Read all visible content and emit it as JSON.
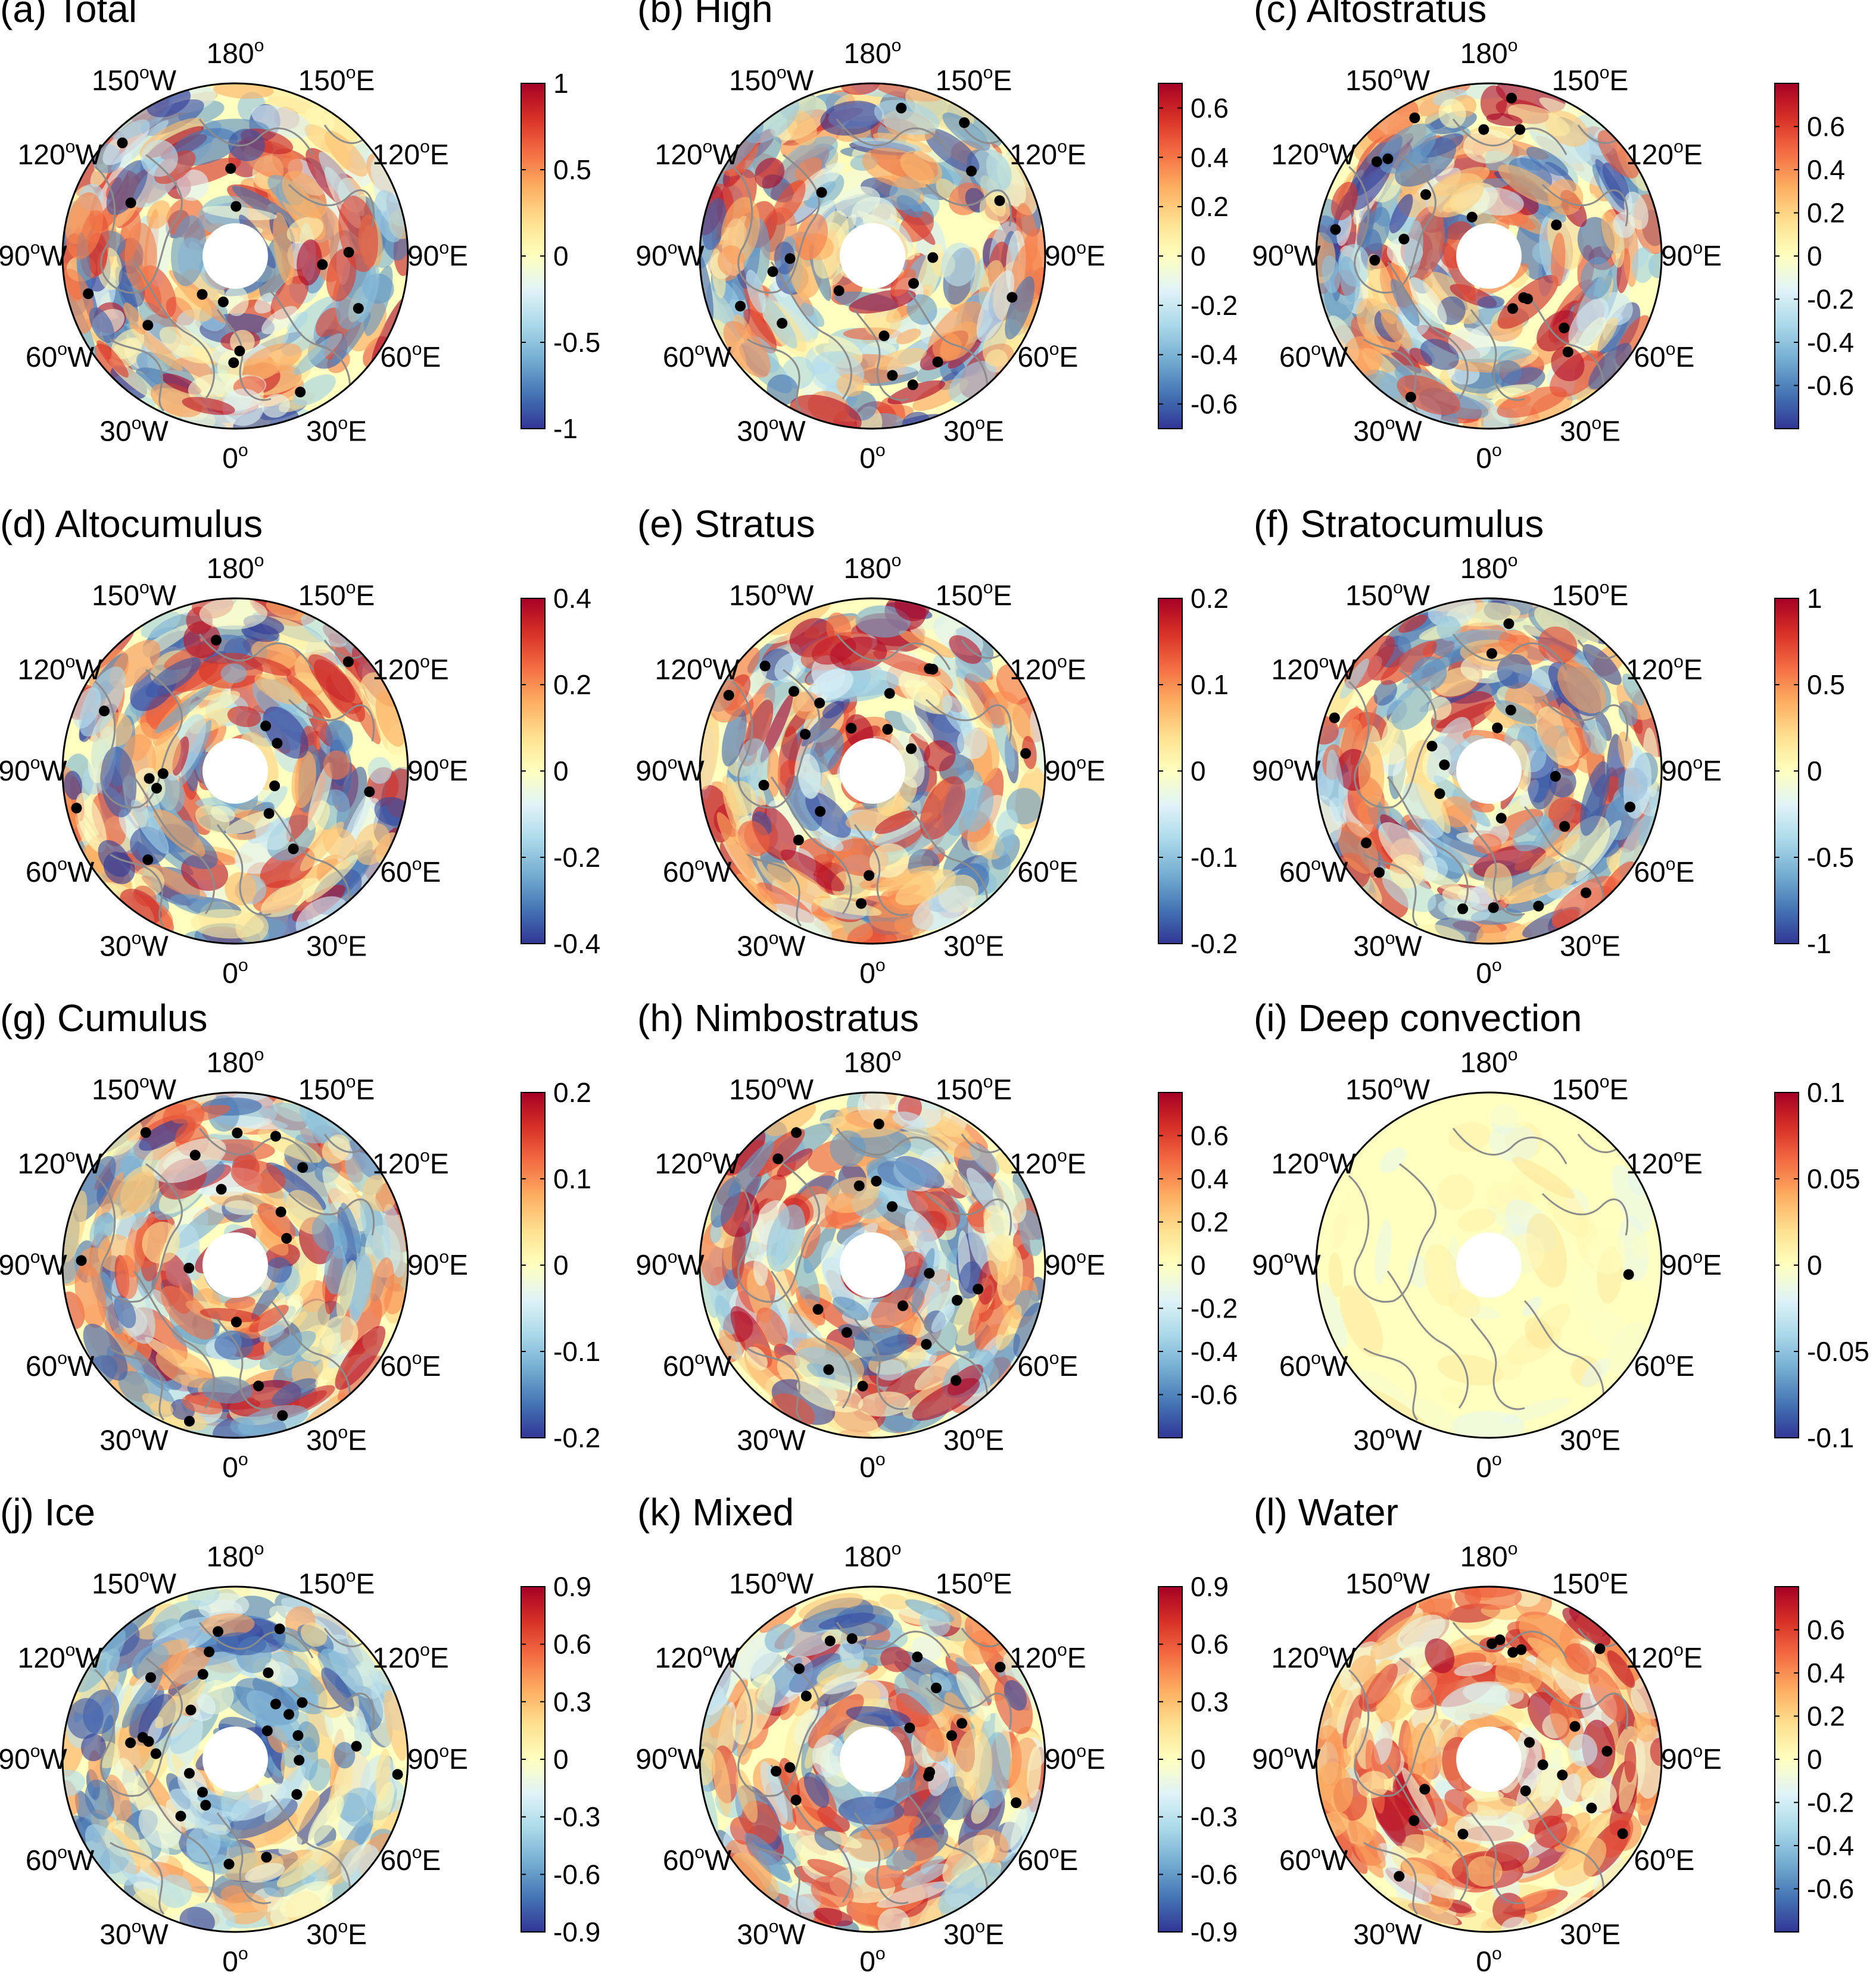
{
  "chart_data": [
    {
      "type": "heatmap",
      "projection": "north polar stereographic",
      "title": "(a) Total",
      "colorbar_ticks": [
        1,
        0.5,
        0,
        -0.5,
        -1
      ],
      "clim": [
        -1,
        1
      ],
      "stippling": "black dots",
      "seed": 11
    },
    {
      "type": "heatmap",
      "projection": "north polar stereographic",
      "title": "(b) High",
      "colorbar_ticks": [
        0.6,
        0.4,
        0.2,
        0,
        -0.2,
        -0.4,
        -0.6
      ],
      "clim": [
        -0.7,
        0.7
      ],
      "stippling": "black dots",
      "seed": 23
    },
    {
      "type": "heatmap",
      "projection": "north polar stereographic",
      "title": "(c) Altostratus",
      "colorbar_ticks": [
        0.6,
        0.4,
        0.2,
        0,
        -0.2,
        -0.4,
        -0.6
      ],
      "clim": [
        -0.8,
        0.8
      ],
      "stippling": "black dots",
      "seed": 37
    },
    {
      "type": "heatmap",
      "projection": "north polar stereographic",
      "title": "(d) Altocumulus",
      "colorbar_ticks": [
        0.4,
        0.2,
        0,
        -0.2,
        -0.4
      ],
      "clim": [
        -0.4,
        0.4
      ],
      "stippling": "black dots",
      "seed": 41
    },
    {
      "type": "heatmap",
      "projection": "north polar stereographic",
      "title": "(e) Stratus",
      "colorbar_ticks": [
        0.2,
        0.1,
        0,
        -0.1,
        -0.2
      ],
      "clim": [
        -0.2,
        0.2
      ],
      "stippling": "black dots",
      "seed": 53
    },
    {
      "type": "heatmap",
      "projection": "north polar stereographic",
      "title": "(f) Stratocumulus",
      "colorbar_ticks": [
        1,
        0.5,
        0,
        -0.5,
        -1
      ],
      "clim": [
        -1,
        1
      ],
      "stippling": "black dots",
      "seed": 67
    },
    {
      "type": "heatmap",
      "projection": "north polar stereographic",
      "title": "(g) Cumulus",
      "colorbar_ticks": [
        0.2,
        0.1,
        0,
        -0.1,
        -0.2
      ],
      "clim": [
        -0.2,
        0.2
      ],
      "stippling": "black dots",
      "seed": 71
    },
    {
      "type": "heatmap",
      "projection": "north polar stereographic",
      "title": "(h) Nimbostratus",
      "colorbar_ticks": [
        0.6,
        0.4,
        0.2,
        0,
        -0.2,
        -0.4,
        -0.6
      ],
      "clim": [
        -0.8,
        0.8
      ],
      "stippling": "black dots",
      "seed": 83
    },
    {
      "type": "heatmap",
      "projection": "north polar stereographic",
      "title": "(i) Deep convection",
      "colorbar_ticks": [
        0.1,
        0.05,
        0,
        -0.05,
        -0.1
      ],
      "clim": [
        -0.1,
        0.1
      ],
      "stippling": "black dots",
      "seed": 97
    },
    {
      "type": "heatmap",
      "projection": "north polar stereographic",
      "title": "(j) Ice",
      "colorbar_ticks": [
        0.9,
        0.6,
        0.3,
        0,
        -0.3,
        -0.6,
        -0.9
      ],
      "clim": [
        -0.9,
        0.9
      ],
      "stippling": "black dots",
      "seed": 103
    },
    {
      "type": "heatmap",
      "projection": "north polar stereographic",
      "title": "(k) Mixed",
      "colorbar_ticks": [
        0.9,
        0.6,
        0.3,
        0,
        -0.3,
        -0.6,
        -0.9
      ],
      "clim": [
        -0.9,
        0.9
      ],
      "stippling": "black dots",
      "seed": 113
    },
    {
      "type": "heatmap",
      "projection": "north polar stereographic",
      "title": "(l) Water",
      "colorbar_ticks": [
        0.6,
        0.4,
        0.2,
        0,
        -0.2,
        -0.4,
        -0.6
      ],
      "clim": [
        -0.8,
        0.8
      ],
      "stippling": "black dots",
      "seed": 127
    }
  ],
  "longitude_labels": [
    {
      "deg": "180",
      "hemi": ""
    },
    {
      "deg": "150",
      "hemi": "E"
    },
    {
      "deg": "120",
      "hemi": "E"
    },
    {
      "deg": "90",
      "hemi": "E"
    },
    {
      "deg": "60",
      "hemi": "E"
    },
    {
      "deg": "30",
      "hemi": "E"
    },
    {
      "deg": "0",
      "hemi": ""
    },
    {
      "deg": "30",
      "hemi": "W"
    },
    {
      "deg": "60",
      "hemi": "W"
    },
    {
      "deg": "90",
      "hemi": "W"
    },
    {
      "deg": "120",
      "hemi": "W"
    },
    {
      "deg": "150",
      "hemi": "W"
    }
  ],
  "degree_symbol": "o",
  "colormap": [
    "#313695",
    "#4575b4",
    "#74add1",
    "#abd9e9",
    "#e0f3f8",
    "#ffffbf",
    "#fee090",
    "#fdae61",
    "#f46d43",
    "#d73027",
    "#a50026"
  ],
  "coastline_color": "#8c8c8c",
  "dot_color": "#000000"
}
